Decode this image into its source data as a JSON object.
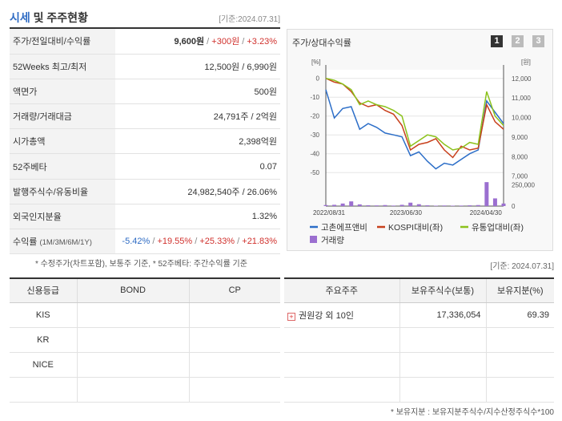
{
  "header": {
    "title_blue": "시세",
    "title_rest": " 및 주주현황",
    "date": "[기준:2024.07.31]"
  },
  "quote_rows": [
    {
      "label": "주가/전일대비/수익률",
      "price": "9,600원",
      "change": "+300원",
      "rate": "+3.23%"
    },
    {
      "label": "52Weeks 최고/최저",
      "value": "12,500원 / 6,990원"
    },
    {
      "label": "액면가",
      "value": "500원"
    },
    {
      "label": "거래량/거래대금",
      "value": "24,791주 / 2억원"
    },
    {
      "label": "시가총액",
      "value": "2,398억원"
    },
    {
      "label": "52주베타",
      "value": "0.07"
    },
    {
      "label": "발행주식수/유동비율",
      "value": "24,982,540주 / 26.06%"
    },
    {
      "label": "외국인지분율",
      "value": "1.32%"
    },
    {
      "label": "수익률",
      "label_sub": "(1M/3M/6M/1Y)",
      "r1": "-5.42%",
      "r2": "+19.55%",
      "r3": "+25.33%",
      "r4": "+21.83%"
    }
  ],
  "notes": {
    "left": "* 수정주가(차트포함), 보통주 기준, * 52주베타: 주간수익률 기준",
    "right": "[기준: 2024.07.31]",
    "bottom": "* 보유지분 : 보유지분주식수/지수산정주식수*100"
  },
  "chart_panel": {
    "title": "주가/상대수익률",
    "pages": [
      "1",
      "2",
      "3"
    ],
    "active_page": "1"
  },
  "chart_data": {
    "type": "line",
    "x_ticks": [
      "2022/08/31",
      "2023/06/30",
      "2024/04/30"
    ],
    "left_axis": {
      "unit": "[%]",
      "ticks": [
        "0",
        "-10",
        "-20",
        "-30",
        "-40",
        "-50"
      ],
      "range": [
        -55,
        2
      ]
    },
    "right_axis": {
      "unit": "[원]",
      "ticks": [
        "12,000",
        "11,000",
        "10,000",
        "9,000",
        "8,000",
        "7,000"
      ],
      "range": [
        6700,
        12200
      ]
    },
    "volume_axis": {
      "ticks": [
        "250,000",
        "0"
      ],
      "max": 300000
    },
    "series": [
      {
        "name": "고촌에프앤비",
        "color": "#2c6ec8",
        "values": [
          -6,
          -21,
          -16,
          -15,
          -27,
          -24,
          -26,
          -29,
          -30,
          -31,
          -41,
          -39,
          -44,
          -48,
          -45,
          -46,
          -43,
          -40,
          -38,
          -12,
          -18,
          -24
        ]
      },
      {
        "name": "KOSPI대비(좌)",
        "color": "#c8401c",
        "values": [
          0,
          -2,
          -3,
          -7,
          -13,
          -15,
          -14,
          -17,
          -19,
          -25,
          -38,
          -35,
          -34,
          -32,
          -38,
          -42,
          -36,
          -38,
          -37,
          -14,
          -23,
          -27
        ]
      },
      {
        "name": "유통업대비(좌)",
        "color": "#8cc21c",
        "values": [
          0,
          -1,
          -3,
          -6,
          -14,
          -12,
          -14,
          -15,
          -17,
          -20,
          -36,
          -33,
          -30,
          -31,
          -35,
          -38,
          -37,
          -34,
          -35,
          -7,
          -20,
          -25
        ]
      }
    ],
    "volume": {
      "name": "거래량",
      "color": "#9b6fd0",
      "values": [
        12000,
        15000,
        30000,
        55000,
        20000,
        10000,
        8000,
        12000,
        6000,
        15000,
        40000,
        22000,
        9000,
        5000,
        7000,
        5000,
        6000,
        9000,
        12000,
        280000,
        90000,
        30000
      ]
    }
  },
  "credit_table": {
    "headers": [
      "신용등급",
      "BOND",
      "CP"
    ],
    "rows": [
      {
        "agency": "KIS",
        "bond": "",
        "cp": ""
      },
      {
        "agency": "KR",
        "bond": "",
        "cp": ""
      },
      {
        "agency": "NICE",
        "bond": "",
        "cp": ""
      },
      {
        "agency": "",
        "bond": "",
        "cp": ""
      }
    ]
  },
  "holder_table": {
    "headers": [
      "주요주주",
      "보유주식수(보통)",
      "보유지분(%)"
    ],
    "rows": [
      {
        "name": "권원강 외 10인",
        "shares": "17,336,054",
        "ratio": "69.39"
      },
      {
        "name": "",
        "shares": "",
        "ratio": ""
      },
      {
        "name": "",
        "shares": "",
        "ratio": ""
      },
      {
        "name": "",
        "shares": "",
        "ratio": ""
      }
    ]
  }
}
